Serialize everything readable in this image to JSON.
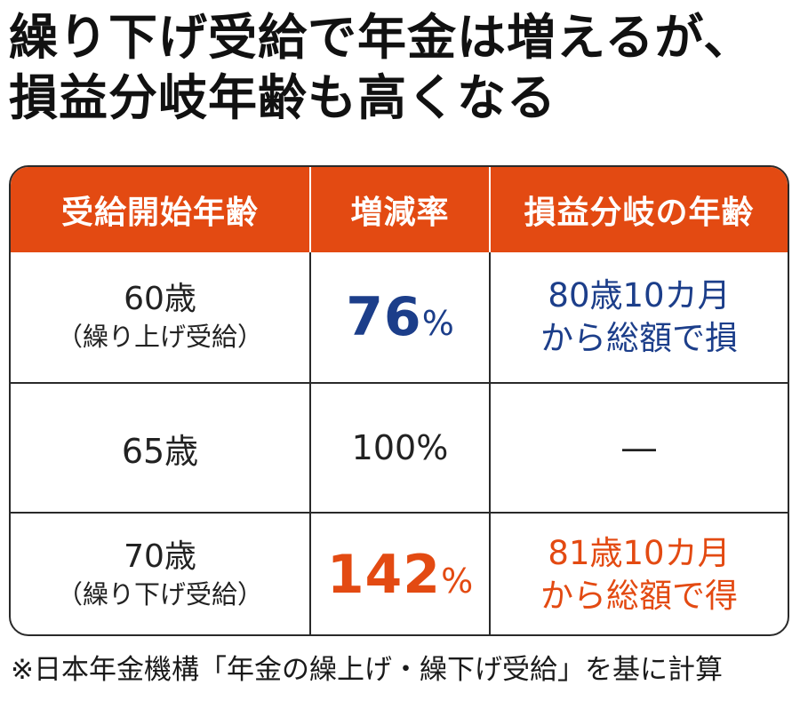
{
  "title": {
    "line1": "繰り下げ受給で年金は増えるが、",
    "line2": "損益分岐年齢も高くなる"
  },
  "table": {
    "headers": [
      "受給開始年齢",
      "増減率",
      "損益分岐の年齢"
    ],
    "rows": [
      {
        "age": "60歳",
        "note": "（繰り上げ受給）",
        "rate_value": "76",
        "rate_unit": "%",
        "breakeven_line1": "80歳10カ月",
        "breakeven_line2": "から総額で損"
      },
      {
        "age": "65歳",
        "note": "",
        "rate": "100%",
        "breakeven": "―"
      },
      {
        "age": "70歳",
        "note": "（繰り下げ受給）",
        "rate_value": "142",
        "rate_unit": "%",
        "breakeven_line1": "81歳10カ月",
        "breakeven_line2": "から総額で得"
      }
    ]
  },
  "footnote": "※日本年金機構「年金の繰上げ・繰下げ受給」を基に計算",
  "colors": {
    "header_bg": "#e34a12",
    "blue": "#1c3e8a",
    "orange": "#e34a12"
  }
}
